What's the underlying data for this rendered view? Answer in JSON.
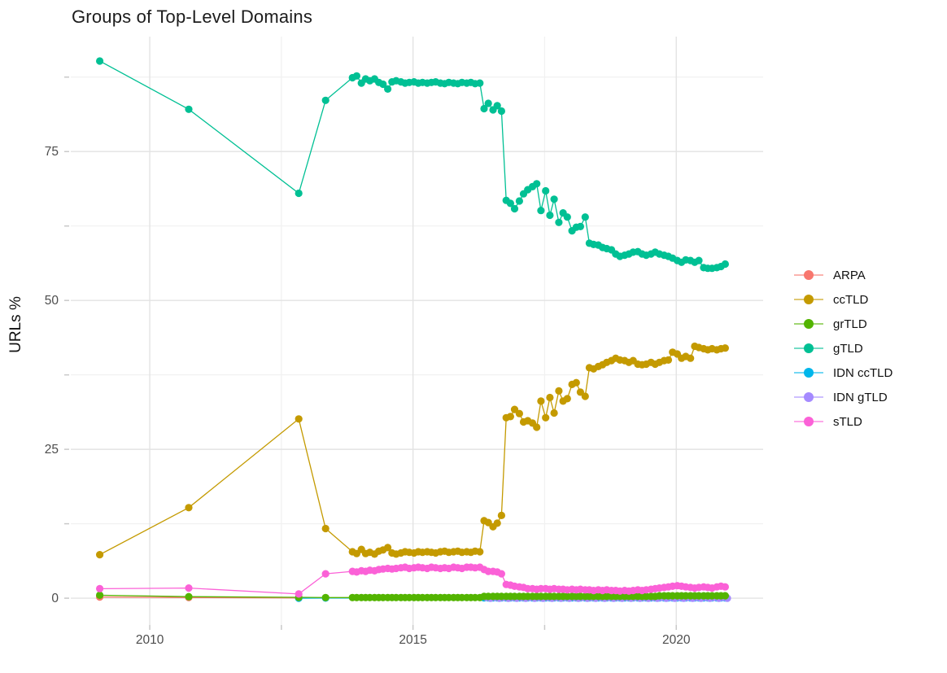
{
  "chart_data": {
    "type": "line",
    "title": "Groups of Top-Level Domains",
    "xlabel": "",
    "ylabel": "URLs %",
    "grid": true,
    "legend_position": "right",
    "x_axis": {
      "ticks": [
        2010,
        2015,
        2020
      ],
      "tick_labels": [
        "2010",
        "2015",
        "2020"
      ],
      "minor_ticks": [
        2012.5,
        2017.5
      ],
      "range": [
        2008.5,
        2021.65
      ]
    },
    "y_axis": {
      "ticks": [
        0,
        25,
        50,
        75
      ],
      "tick_labels": [
        "0",
        "25",
        "50",
        "75"
      ],
      "minor_ticks": [
        12.5,
        37.5,
        62.5,
        87.5
      ],
      "range": [
        -4.5,
        94.3
      ]
    },
    "point_radius": 4.6,
    "line_width": 1.3,
    "x_monthly": [
      2013.85,
      2013.93,
      2014.02,
      2014.1,
      2014.18,
      2014.27,
      2014.35,
      2014.43,
      2014.52,
      2014.6,
      2014.68,
      2014.77,
      2014.85,
      2014.93,
      2015.02,
      2015.1,
      2015.18,
      2015.27,
      2015.35,
      2015.43,
      2015.52,
      2015.6,
      2015.68,
      2015.77,
      2015.85,
      2015.93,
      2016.02,
      2016.1,
      2016.18,
      2016.27,
      2016.35,
      2016.43,
      2016.52,
      2016.6,
      2016.68,
      2016.77,
      2016.85,
      2016.93,
      2017.02,
      2017.1,
      2017.18,
      2017.27,
      2017.35,
      2017.43,
      2017.52,
      2017.6,
      2017.68,
      2017.77,
      2017.85,
      2017.93,
      2018.02,
      2018.1,
      2018.18,
      2018.27,
      2018.35,
      2018.43,
      2018.52,
      2018.6,
      2018.68,
      2018.77,
      2018.85,
      2018.93,
      2019.02,
      2019.1,
      2019.18,
      2019.27,
      2019.35,
      2019.43,
      2019.52,
      2019.6,
      2019.68,
      2019.77,
      2019.85,
      2019.93,
      2020.02,
      2020.1,
      2020.18,
      2020.27,
      2020.35,
      2020.43,
      2020.52,
      2020.6,
      2020.68,
      2020.77,
      2020.85,
      2020.93
    ],
    "draw_order": [
      0,
      4,
      5,
      1,
      2,
      3,
      6
    ],
    "series": [
      {
        "name": "ARPA",
        "color": "#F8766D",
        "head": [
          [
            2009.05,
            0.2
          ],
          [
            2010.74,
            0.1
          ],
          [
            2012.83,
            0.05
          ]
        ]
      },
      {
        "name": "ccTLD",
        "color": "#C49A00",
        "head": [
          [
            2009.05,
            7.3
          ],
          [
            2010.74,
            15.2
          ],
          [
            2012.83,
            30.1
          ],
          [
            2013.34,
            11.7
          ]
        ],
        "monthly": [
          7.8,
          7.5,
          8.2,
          7.5,
          7.7,
          7.4,
          7.9,
          8.1,
          8.5,
          7.6,
          7.4,
          7.6,
          7.8,
          7.7,
          7.6,
          7.8,
          7.7,
          7.8,
          7.7,
          7.6,
          7.8,
          7.9,
          7.7,
          7.8,
          7.9,
          7.7,
          7.8,
          7.7,
          7.9,
          7.8,
          13.0,
          12.7,
          12.0,
          12.6,
          13.9,
          30.3,
          30.5,
          31.7,
          31.0,
          29.6,
          29.8,
          29.4,
          28.7,
          33.1,
          30.3,
          33.7,
          31.1,
          34.8,
          33.1,
          33.5,
          35.9,
          36.2,
          34.6,
          33.9,
          38.7,
          38.5,
          38.9,
          39.2,
          39.6,
          39.9,
          40.3,
          40.0,
          39.9,
          39.6,
          39.9,
          39.3,
          39.2,
          39.3,
          39.6,
          39.3,
          39.6,
          39.9,
          40.0,
          41.3,
          41.0,
          40.3,
          40.6,
          40.3,
          42.3,
          42.1,
          41.9,
          41.7,
          41.9,
          41.7,
          41.9,
          42.0
        ]
      },
      {
        "name": "grTLD",
        "color": "#53B400",
        "head": [
          [
            2009.05,
            0.5
          ],
          [
            2010.74,
            0.25
          ],
          [
            2012.83,
            0.15
          ],
          [
            2013.34,
            0.1
          ]
        ],
        "monthly": [
          0.1,
          0.1,
          0.1,
          0.1,
          0.1,
          0.1,
          0.1,
          0.1,
          0.1,
          0.1,
          0.1,
          0.1,
          0.1,
          0.1,
          0.1,
          0.1,
          0.1,
          0.1,
          0.1,
          0.1,
          0.1,
          0.1,
          0.1,
          0.1,
          0.1,
          0.1,
          0.1,
          0.1,
          0.1,
          0.1,
          0.3,
          0.3,
          0.3,
          0.3,
          0.3,
          0.3,
          0.3,
          0.3,
          0.3,
          0.3,
          0.3,
          0.3,
          0.3,
          0.3,
          0.3,
          0.3,
          0.3,
          0.3,
          0.3,
          0.3,
          0.3,
          0.3,
          0.3,
          0.3,
          0.3,
          0.3,
          0.3,
          0.3,
          0.3,
          0.3,
          0.3,
          0.3,
          0.3,
          0.3,
          0.3,
          0.3,
          0.3,
          0.3,
          0.3,
          0.3,
          0.4,
          0.4,
          0.4,
          0.4,
          0.4,
          0.4,
          0.4,
          0.4,
          0.4,
          0.4,
          0.4,
          0.4,
          0.4,
          0.4,
          0.4,
          0.4
        ]
      },
      {
        "name": "gTLD",
        "color": "#00C094",
        "head": [
          [
            2009.05,
            90.2
          ],
          [
            2010.74,
            82.1
          ],
          [
            2012.83,
            68.0
          ],
          [
            2013.34,
            83.6
          ]
        ],
        "monthly": [
          87.4,
          87.7,
          86.5,
          87.2,
          86.9,
          87.2,
          86.6,
          86.3,
          85.5,
          86.7,
          86.9,
          86.7,
          86.5,
          86.6,
          86.7,
          86.5,
          86.6,
          86.5,
          86.6,
          86.7,
          86.5,
          86.4,
          86.6,
          86.5,
          86.4,
          86.6,
          86.5,
          86.6,
          86.4,
          86.5,
          82.2,
          83.1,
          82.0,
          82.7,
          81.8,
          66.8,
          66.3,
          65.4,
          66.7,
          67.9,
          68.6,
          69.1,
          69.6,
          65.1,
          68.4,
          64.3,
          67.0,
          63.1,
          64.7,
          64.0,
          61.7,
          62.3,
          62.4,
          64.0,
          59.6,
          59.4,
          59.3,
          58.9,
          58.7,
          58.5,
          57.8,
          57.4,
          57.6,
          57.8,
          58.1,
          58.2,
          57.8,
          57.6,
          57.8,
          58.1,
          57.8,
          57.6,
          57.4,
          57.1,
          56.7,
          56.4,
          56.8,
          56.7,
          56.4,
          56.7,
          55.5,
          55.4,
          55.4,
          55.5,
          55.7,
          56.1
        ]
      },
      {
        "name": "IDN ccTLD",
        "color": "#00B6EB",
        "head": [
          [
            2012.83,
            0.0
          ],
          [
            2013.34,
            0.02
          ]
        ],
        "monthly_from": 30,
        "monthly": [
          0.05,
          0.05,
          0.05,
          0.05,
          0.05,
          0.05,
          0.05,
          0.05,
          0.05,
          0.05,
          0.05,
          0.05,
          0.05,
          0.05,
          0.05,
          0.05,
          0.05,
          0.05,
          0.05,
          0.05,
          0.05,
          0.05,
          0.05,
          0.05,
          0.05,
          0.05,
          0.05,
          0.05,
          0.05,
          0.05,
          0.05,
          0.05,
          0.05,
          0.05,
          0.05,
          0.05,
          0.05,
          0.05,
          0.05,
          0.05,
          0.05,
          0.05,
          0.05,
          0.05,
          0.05,
          0.05,
          0.05,
          0.05,
          0.05,
          0.05,
          0.05,
          0.05,
          0.05,
          0.05,
          0.05,
          0.05
        ]
      },
      {
        "name": "IDN gTLD",
        "color": "#A58AFF",
        "monthly_from": 30,
        "x_offset": 0.04,
        "monthly": [
          0.15,
          0.0,
          0.15,
          0.0,
          0.15,
          0.0,
          0.15,
          0.0,
          0.15,
          0.0,
          0.15,
          0.0,
          0.15,
          0.0,
          0.15,
          0.0,
          0.15,
          0.0,
          0.15,
          0.0,
          0.15,
          0.0,
          0.15,
          0.0,
          0.15,
          0.0,
          0.15,
          0.0,
          0.15,
          0.0,
          0.15,
          0.0,
          0.15,
          0.0,
          0.15,
          0.0,
          0.15,
          0.0,
          0.15,
          0.0,
          0.15,
          0.0,
          0.15,
          0.0,
          0.15,
          0.0,
          0.15,
          0.0,
          0.15,
          0.0,
          0.15,
          0.0,
          0.15,
          0.0,
          0.15,
          0.0
        ]
      },
      {
        "name": "sTLD",
        "color": "#FB61D7",
        "head": [
          [
            2009.05,
            1.6
          ],
          [
            2010.74,
            1.7
          ],
          [
            2012.83,
            0.7
          ],
          [
            2013.34,
            4.1
          ]
        ],
        "monthly": [
          4.5,
          4.4,
          4.6,
          4.5,
          4.7,
          4.6,
          4.8,
          4.9,
          5.0,
          4.9,
          5.0,
          5.1,
          5.2,
          5.0,
          5.1,
          5.2,
          5.1,
          5.0,
          5.2,
          5.1,
          5.0,
          5.1,
          5.0,
          5.2,
          5.1,
          5.0,
          5.2,
          5.2,
          5.1,
          5.2,
          4.8,
          4.5,
          4.5,
          4.4,
          4.1,
          2.3,
          2.2,
          2.0,
          1.9,
          1.8,
          1.6,
          1.6,
          1.5,
          1.6,
          1.6,
          1.5,
          1.6,
          1.5,
          1.5,
          1.4,
          1.5,
          1.4,
          1.5,
          1.4,
          1.4,
          1.3,
          1.4,
          1.3,
          1.4,
          1.3,
          1.3,
          1.2,
          1.3,
          1.2,
          1.3,
          1.4,
          1.3,
          1.4,
          1.5,
          1.6,
          1.7,
          1.8,
          1.9,
          2.0,
          2.1,
          2.0,
          1.9,
          1.8,
          1.7,
          1.8,
          1.9,
          1.8,
          1.7,
          1.9,
          2.0,
          1.9
        ]
      }
    ]
  },
  "colors": {
    "background": "#ffffff",
    "grid_major": "#e3e3e3",
    "grid_minor": "#f1f1f1",
    "tick_mark": "#c9c9c9",
    "tick_label": "#4d4d4d",
    "text": "#111111"
  }
}
